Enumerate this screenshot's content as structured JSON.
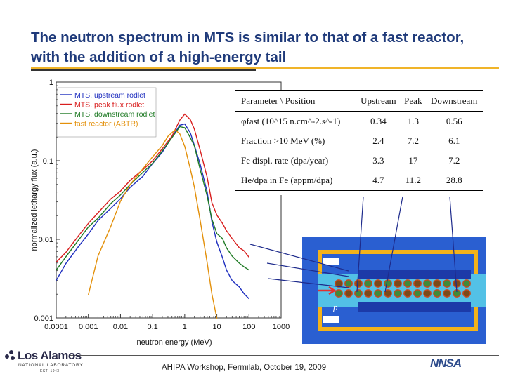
{
  "slide": {
    "title": "The neutron spectrum in MTS is similar to that of a fast reactor, with the addition of a high-energy tail",
    "footer": "AHIPA Workshop, Fermilab, October 19, 2009"
  },
  "logos": {
    "lanl_name": "Los Alamos",
    "lanl_sub": "NATIONAL LABORATORY",
    "lanl_est": "EST. 1943",
    "nnsa": "NNSA"
  },
  "table": {
    "headers": [
      "Parameter \\ Position",
      "Upstream",
      "Peak",
      "Downstream"
    ],
    "rows": [
      {
        "param": "φfast (10^15 n.cm^-2.s^-1)",
        "upstream": "0.34",
        "peak": "1.3",
        "downstream": "0.56"
      },
      {
        "param": "Fraction >10 MeV (%)",
        "upstream": "2.4",
        "peak": "7.2",
        "downstream": "6.1"
      },
      {
        "param": "Fe displ. rate (dpa/year)",
        "upstream": "3.3",
        "peak": "17",
        "downstream": "7.2"
      },
      {
        "param": "He/dpa in Fe (appm/dpa)",
        "upstream": "4.7",
        "peak": "11.2",
        "downstream": "28.8"
      }
    ]
  },
  "sim": {
    "beam_label": "p"
  },
  "colors": {
    "upstream": "#1f2fbf",
    "peak": "#d81e1e",
    "downstream": "#1e7a24",
    "fast_reactor": "#e3900a",
    "title": "#1f3a7a",
    "accent": "#f0b429"
  },
  "chart_data": {
    "type": "line",
    "xscale": "log",
    "yscale": "log",
    "xlabel": "neutron energy (MeV)",
    "ylabel": "normalized lethargy flux (a.u.)",
    "xlim": [
      0.0001,
      1000
    ],
    "ylim": [
      0.001,
      1
    ],
    "xticks": [
      "0.0001",
      "0.001",
      "0.01",
      "0.1",
      "1",
      "10",
      "100",
      "1000"
    ],
    "yticks": [
      "0.001",
      "0.01",
      "0.1",
      "1"
    ],
    "series": [
      {
        "name": "MTS, upstream rodlet",
        "color": "#1f2fbf",
        "x": [
          0.0001,
          0.0002,
          0.0005,
          0.001,
          0.002,
          0.005,
          0.01,
          0.02,
          0.05,
          0.1,
          0.2,
          0.4,
          0.7,
          1,
          1.5,
          2,
          3,
          5,
          7,
          10,
          15,
          20,
          30,
          50,
          70,
          100
        ],
        "y": [
          0.003,
          0.005,
          0.008,
          0.012,
          0.017,
          0.025,
          0.033,
          0.045,
          0.065,
          0.09,
          0.13,
          0.2,
          0.28,
          0.3,
          0.22,
          0.16,
          0.09,
          0.04,
          0.017,
          0.009,
          0.006,
          0.004,
          0.003,
          0.0025,
          0.002,
          0.0018
        ]
      },
      {
        "name": "MTS, peak flux rodlet",
        "color": "#d81e1e",
        "x": [
          0.0001,
          0.0002,
          0.0005,
          0.001,
          0.002,
          0.005,
          0.01,
          0.02,
          0.05,
          0.1,
          0.2,
          0.4,
          0.7,
          1,
          1.5,
          2,
          3,
          5,
          7,
          10,
          15,
          20,
          30,
          50,
          70,
          100
        ],
        "y": [
          0.005,
          0.007,
          0.011,
          0.016,
          0.022,
          0.032,
          0.042,
          0.055,
          0.078,
          0.1,
          0.14,
          0.21,
          0.32,
          0.4,
          0.33,
          0.25,
          0.14,
          0.06,
          0.03,
          0.02,
          0.016,
          0.013,
          0.01,
          0.008,
          0.007,
          0.006
        ]
      },
      {
        "name": "MTS, downstream rodlet",
        "color": "#1e7a24",
        "x": [
          0.0001,
          0.0002,
          0.0005,
          0.001,
          0.002,
          0.005,
          0.01,
          0.02,
          0.05,
          0.1,
          0.2,
          0.4,
          0.7,
          1,
          1.5,
          2,
          3,
          5,
          7,
          10,
          15,
          20,
          30,
          50,
          70,
          100
        ],
        "y": [
          0.004,
          0.006,
          0.01,
          0.014,
          0.019,
          0.028,
          0.037,
          0.05,
          0.07,
          0.095,
          0.13,
          0.2,
          0.27,
          0.26,
          0.2,
          0.15,
          0.08,
          0.035,
          0.018,
          0.012,
          0.01,
          0.008,
          0.006,
          0.005,
          0.0045,
          0.004
        ]
      },
      {
        "name": "fast reactor (ABTR)",
        "color": "#e3900a",
        "x": [
          0.001,
          0.002,
          0.005,
          0.01,
          0.02,
          0.05,
          0.1,
          0.2,
          0.3,
          0.5,
          0.7,
          1,
          1.5,
          2,
          3,
          5,
          7,
          10
        ],
        "y": [
          0.002,
          0.006,
          0.015,
          0.03,
          0.05,
          0.08,
          0.11,
          0.16,
          0.2,
          0.25,
          0.22,
          0.15,
          0.08,
          0.045,
          0.018,
          0.005,
          0.002,
          0.001
        ]
      }
    ]
  }
}
